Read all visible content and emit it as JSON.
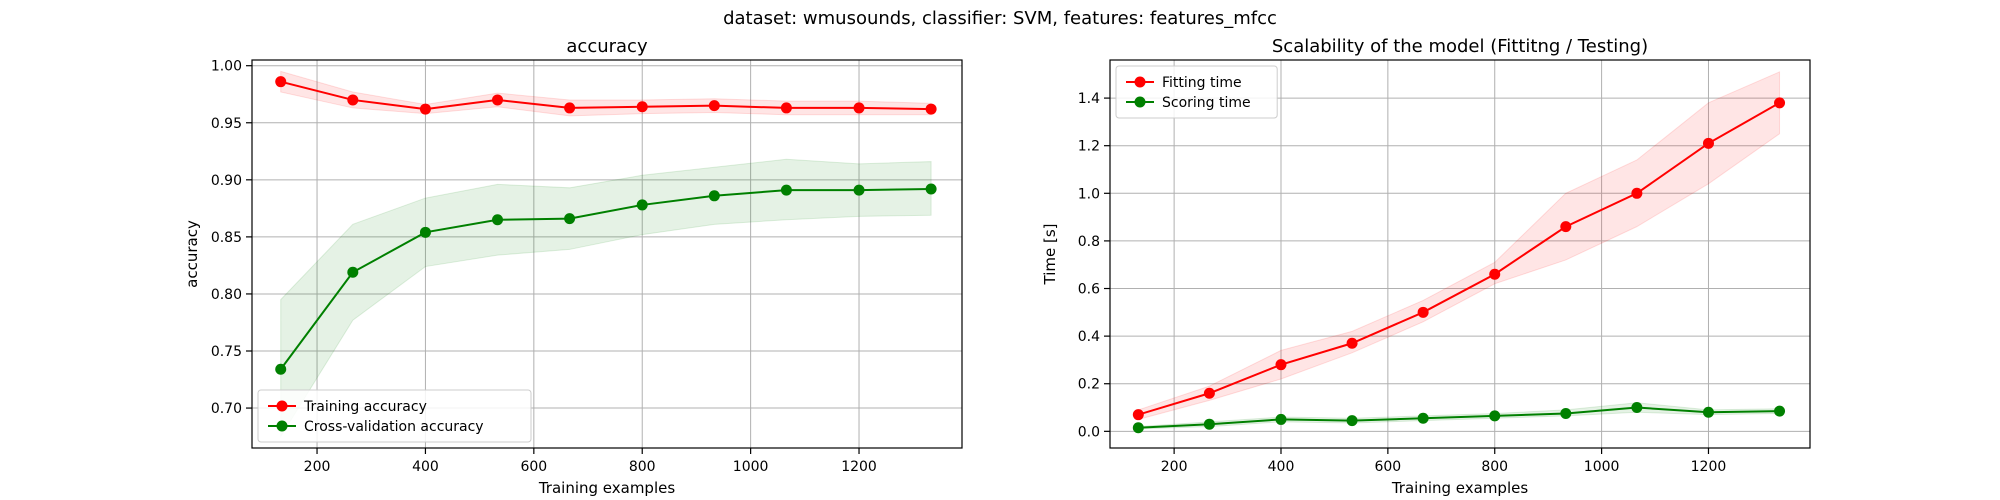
{
  "suptitle": "dataset: wmusounds, classifier: SVM, features: features_mfcc",
  "chart_data": [
    {
      "type": "line",
      "title": "accuracy",
      "xlabel": "Training examples",
      "ylabel": "accuracy",
      "xlim": [
        80,
        1390
      ],
      "ylim": [
        0.665,
        1.005
      ],
      "xticks": [
        200,
        400,
        600,
        800,
        1000,
        1200
      ],
      "yticks": [
        0.7,
        0.75,
        0.8,
        0.85,
        0.9,
        0.95,
        1.0
      ],
      "ytick_labels": [
        "0.70",
        "0.75",
        "0.80",
        "0.85",
        "0.90",
        "0.95",
        "1.00"
      ],
      "xtick_labels": [
        "200",
        "400",
        "600",
        "800",
        "1000",
        "1200"
      ],
      "grid": true,
      "legend_loc": "lower-left",
      "x": [
        133,
        266,
        400,
        533,
        666,
        800,
        933,
        1066,
        1200,
        1333
      ],
      "series": [
        {
          "name": "Training accuracy",
          "color": "#ff0000",
          "band_color": "#ff0000",
          "values": [
            0.986,
            0.97,
            0.962,
            0.97,
            0.963,
            0.964,
            0.965,
            0.963,
            0.963,
            0.962
          ],
          "lower": [
            0.977,
            0.963,
            0.958,
            0.964,
            0.956,
            0.958,
            0.959,
            0.957,
            0.957,
            0.957
          ],
          "upper": [
            0.995,
            0.977,
            0.966,
            0.976,
            0.97,
            0.97,
            0.971,
            0.969,
            0.969,
            0.967
          ]
        },
        {
          "name": "Cross-validation accuracy",
          "color": "#008000",
          "band_color": "#008000",
          "values": [
            0.734,
            0.819,
            0.854,
            0.865,
            0.866,
            0.878,
            0.886,
            0.891,
            0.891,
            0.892
          ],
          "lower": [
            0.675,
            0.777,
            0.824,
            0.834,
            0.839,
            0.852,
            0.861,
            0.865,
            0.868,
            0.869
          ],
          "upper": [
            0.795,
            0.861,
            0.884,
            0.896,
            0.893,
            0.904,
            0.911,
            0.918,
            0.914,
            0.916
          ]
        }
      ]
    },
    {
      "type": "line",
      "title": "Scalability of the model (Fittitng / Testing)",
      "xlabel": "Training examples",
      "ylabel": "Time [s]",
      "xlim": [
        80,
        1390
      ],
      "ylim": [
        -0.07,
        1.56
      ],
      "xticks": [
        200,
        400,
        600,
        800,
        1000,
        1200
      ],
      "yticks": [
        0.0,
        0.2,
        0.4,
        0.6,
        0.8,
        1.0,
        1.2,
        1.4
      ],
      "ytick_labels": [
        "0.0",
        "0.2",
        "0.4",
        "0.6",
        "0.8",
        "1.0",
        "1.2",
        "1.4"
      ],
      "xtick_labels": [
        "200",
        "400",
        "600",
        "800",
        "1000",
        "1200"
      ],
      "grid": true,
      "legend_loc": "upper-left",
      "x": [
        133,
        266,
        400,
        533,
        666,
        800,
        933,
        1066,
        1200,
        1333
      ],
      "series": [
        {
          "name": "Fitting time",
          "color": "#ff0000",
          "band_color": "#ff0000",
          "values": [
            0.07,
            0.16,
            0.28,
            0.37,
            0.5,
            0.66,
            0.86,
            1.0,
            1.21,
            1.38
          ],
          "lower": [
            0.05,
            0.13,
            0.22,
            0.33,
            0.46,
            0.62,
            0.72,
            0.86,
            1.04,
            1.25
          ],
          "upper": [
            0.09,
            0.19,
            0.34,
            0.42,
            0.55,
            0.71,
            1.0,
            1.14,
            1.38,
            1.51
          ]
        },
        {
          "name": "Scoring time",
          "color": "#008000",
          "band_color": "#008000",
          "values": [
            0.015,
            0.03,
            0.05,
            0.045,
            0.055,
            0.065,
            0.075,
            0.1,
            0.08,
            0.085
          ],
          "lower": [
            0.01,
            0.02,
            0.04,
            0.035,
            0.045,
            0.055,
            0.065,
            0.08,
            0.07,
            0.075
          ],
          "upper": [
            0.02,
            0.04,
            0.06,
            0.055,
            0.065,
            0.075,
            0.09,
            0.12,
            0.09,
            0.095
          ]
        }
      ]
    }
  ]
}
